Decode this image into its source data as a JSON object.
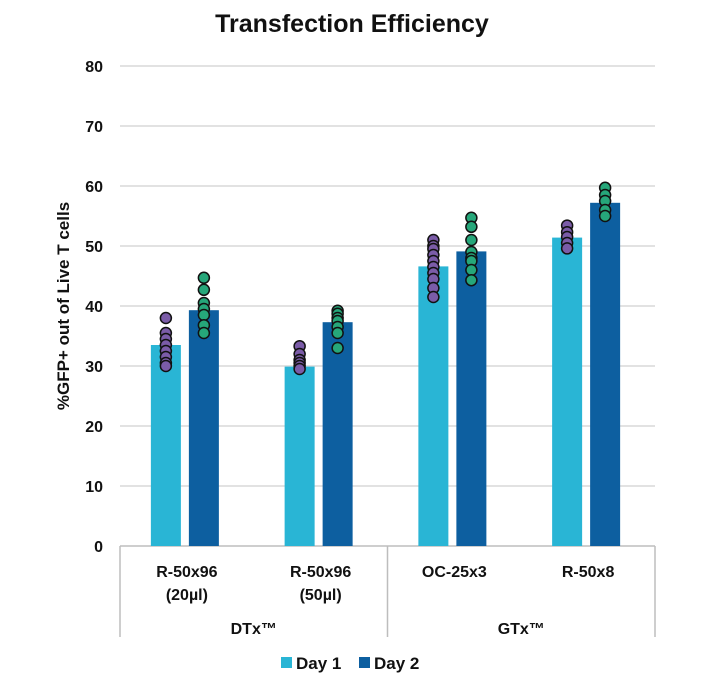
{
  "chart_data": {
    "type": "bar",
    "title": "Transfection Efficiency",
    "ylabel": "%GFP+ out of Live T cells",
    "xlabel": "",
    "ylim": [
      0,
      80
    ],
    "yticks": [
      0,
      10,
      20,
      30,
      40,
      50,
      60,
      70,
      80
    ],
    "grid": true,
    "legend_position": "bottom",
    "categories": [
      {
        "line1": "R-50x96",
        "line2": "(20µl)"
      },
      {
        "line1": "R-50x96",
        "line2": "(50µl)"
      },
      {
        "line1": "OC-25x3",
        "line2": ""
      },
      {
        "line1": "R-50x8",
        "line2": ""
      }
    ],
    "groups": [
      {
        "label": "DTx™",
        "categories": [
          0,
          1
        ]
      },
      {
        "label": "GTx™",
        "categories": [
          2,
          3
        ]
      }
    ],
    "series": [
      {
        "name": "Day 1",
        "color": "#29B5D5",
        "dot_color": "#7B5CA8",
        "values": [
          33.5,
          29.9,
          46.6,
          51.4
        ],
        "points": [
          [
            38,
            35.5,
            34.5,
            33.5,
            32.5,
            31.5,
            30.5,
            30
          ],
          [
            33.3,
            32,
            31,
            30.5,
            30,
            29.5
          ],
          [
            51,
            50,
            49.5,
            48.5,
            47.5,
            46.5,
            45.5,
            44.5,
            43,
            41.5
          ],
          [
            53.4,
            52.3,
            51.5,
            50.5,
            49.6
          ]
        ]
      },
      {
        "name": "Day 2",
        "color": "#0D5FA0",
        "dot_color": "#26A77A",
        "values": [
          39.3,
          37.3,
          49.1,
          57.2
        ],
        "points": [
          [
            44.7,
            42.7,
            40.5,
            39.5,
            38.5,
            36.8,
            35.5
          ],
          [
            39.2,
            38.7,
            38,
            37.5,
            36.5,
            35.5,
            33
          ],
          [
            54.7,
            53.2,
            51,
            49,
            48,
            47.5,
            46,
            44.3
          ],
          [
            59.7,
            58.5,
            57.5,
            56,
            55
          ]
        ]
      }
    ]
  }
}
